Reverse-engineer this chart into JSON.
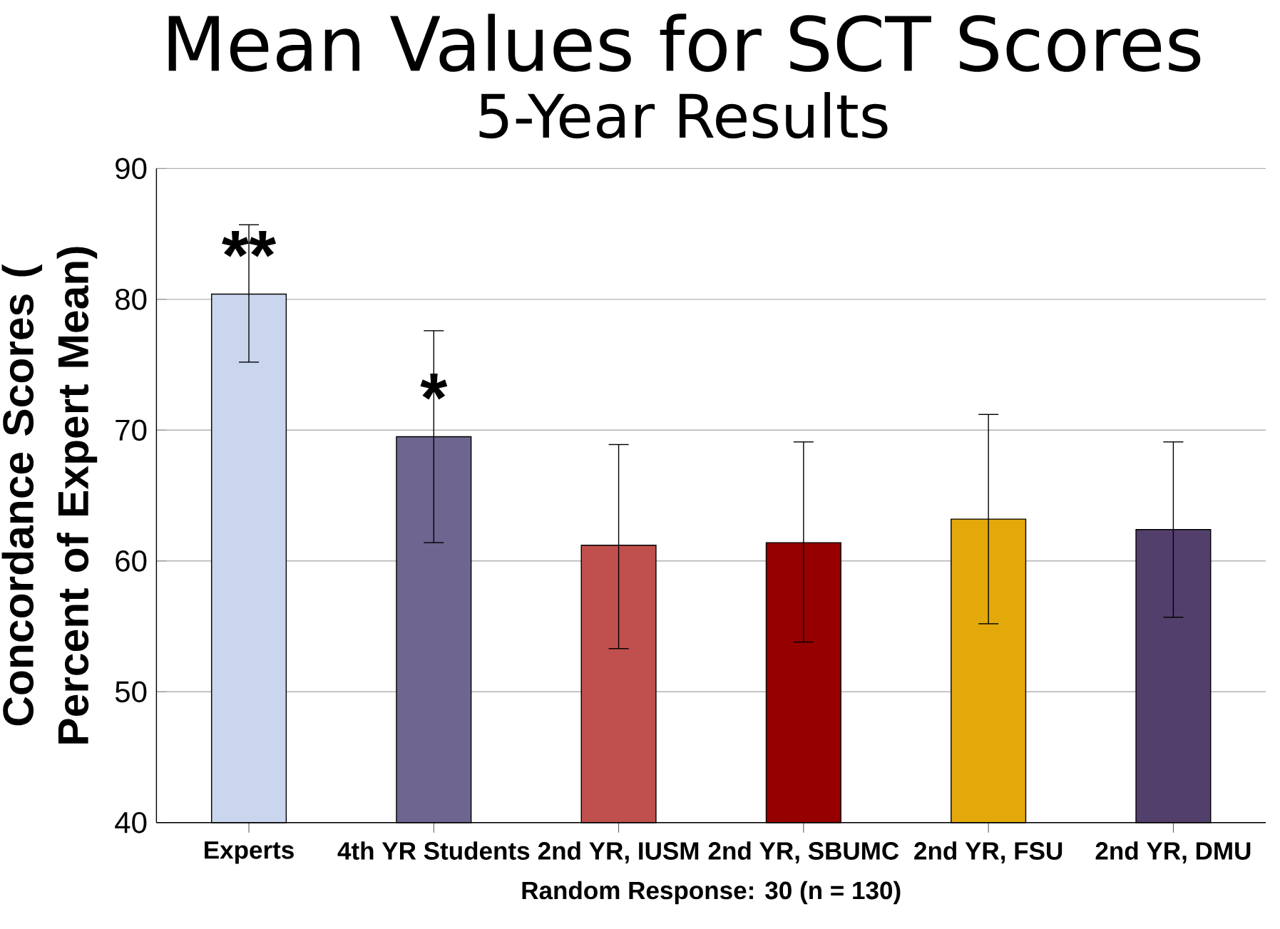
{
  "chart_data": {
    "type": "bar",
    "title": "Mean Values for SCT Scores",
    "subtitle": "5-Year Results",
    "xlabel": "Random Response: 30 (n = 130)",
    "ylabel": "Concordance  Scores ( Percent of Expert Mean)",
    "categories": [
      "Experts",
      "4th YR Students",
      "2nd YR, IUSM",
      "2nd YR, SBUMC",
      "2nd YR, FSU",
      "2nd YR, DMU"
    ],
    "values": [
      80.4,
      69.5,
      61.2,
      61.4,
      63.2,
      62.4
    ],
    "errors": [
      [
        75.2,
        85.7
      ],
      [
        61.4,
        77.6
      ],
      [
        53.3,
        68.9
      ],
      [
        53.8,
        69.1
      ],
      [
        55.2,
        71.2
      ],
      [
        55.7,
        69.1
      ]
    ],
    "colors": [
      "#c9d6ee",
      "#6e6690",
      "#c0504d",
      "#960000",
      "#e3a90a",
      "#533f6b"
    ],
    "ylim": [
      40,
      90
    ],
    "yticks": [
      40,
      50,
      60,
      70,
      80,
      90
    ],
    "grid": "y",
    "annotations": [
      {
        "text": "**",
        "x": "Experts",
        "y": 81.5
      },
      {
        "text": "*",
        "x": "4th YR Students",
        "y": 70.6
      }
    ]
  }
}
